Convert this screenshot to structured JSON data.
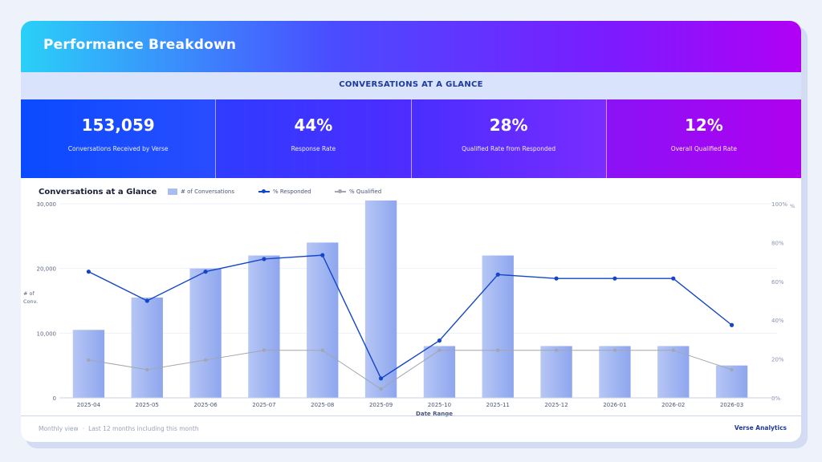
{
  "header": {
    "title": "Performance Breakdown"
  },
  "band": {
    "title": "CONVERSATIONS AT A GLANCE"
  },
  "kpis": [
    {
      "value": "153,059",
      "label": "Conversations Received by Verse"
    },
    {
      "value": "44%",
      "label": "Response Rate"
    },
    {
      "value": "28%",
      "label": "Qualified Rate from Responded"
    },
    {
      "value": "12%",
      "label": "Overall Qualified Rate"
    }
  ],
  "chart": {
    "title": "Conversations at a Glance"
  },
  "legend": {
    "bar": "# of Conversations",
    "responded": "% Responded",
    "qualified": "% Qualified"
  },
  "colors": {
    "bar": "#a9bdf3",
    "responded": "#1446c8",
    "qualified": "#a3a6ae"
  },
  "chart_data": {
    "type": "bar",
    "categories": [
      "2025-04",
      "2025-05",
      "2025-06",
      "2025-07",
      "2025-08",
      "2025-09",
      "2025-10",
      "2025-11",
      "2025-12",
      "2026-01",
      "2026-02",
      "2026-03"
    ],
    "series": [
      {
        "name": "# of Conversations",
        "type": "bar",
        "axis": "left",
        "values": [
          10500,
          15500,
          20000,
          22000,
          24000,
          30500,
          8000,
          22000,
          8000,
          8000,
          8000,
          5000
        ]
      },
      {
        "name": "% Responded",
        "type": "line",
        "axis": "right",
        "values": [
          65,
          50,
          65,
          71.5,
          73.5,
          10,
          29.5,
          63.5,
          61.5,
          61.5,
          61.5,
          37.5
        ]
      },
      {
        "name": "% Qualified",
        "type": "line",
        "axis": "right",
        "values": [
          19.5,
          14.5,
          19.5,
          24.5,
          24.5,
          4.5,
          24.5,
          24.5,
          24.5,
          24.5,
          24.5,
          14.5
        ]
      }
    ],
    "left_axis": {
      "label": "# of Conv.",
      "ticks": [
        "0",
        "10,000",
        "20,000",
        "30,000"
      ],
      "tick_values": [
        0,
        10000,
        20000,
        30000
      ],
      "ylim": [
        0,
        30000
      ]
    },
    "right_axis": {
      "label": "%",
      "ticks": [
        "0%",
        "20%",
        "40%",
        "60%",
        "80%",
        "100%"
      ],
      "tick_values": [
        0,
        20,
        40,
        60,
        80,
        100
      ],
      "ylim": [
        0,
        100
      ]
    },
    "xlabel": "Date Range",
    "grid": true,
    "legend_position": "top"
  },
  "footer": {
    "view": "Monthly view",
    "range": "Last 12 months including this month",
    "brand": "Verse Analytics"
  }
}
